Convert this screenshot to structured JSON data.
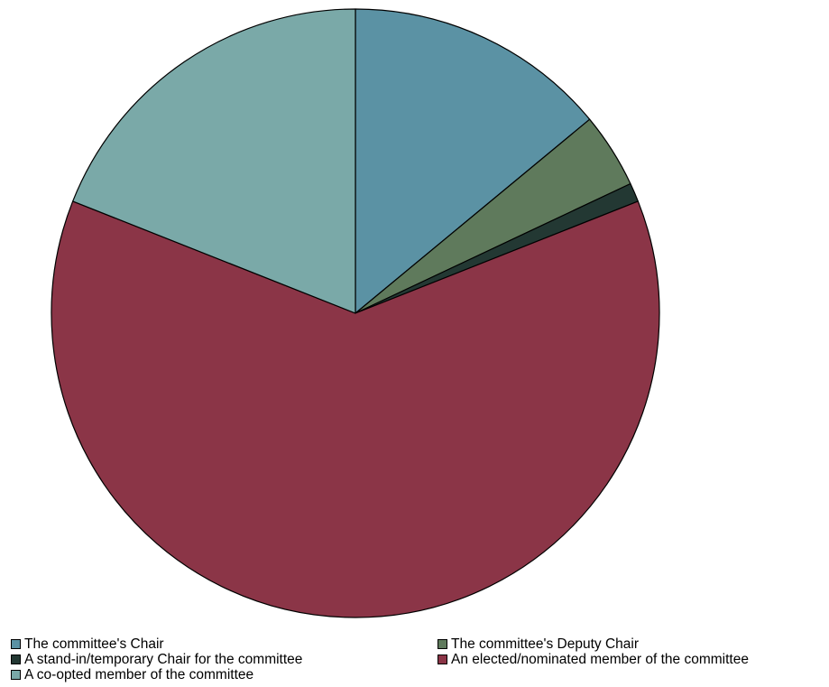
{
  "chart_data": {
    "type": "pie",
    "title": "",
    "start_angle_deg": 0,
    "direction": "clockwise",
    "slices": [
      {
        "label": "The committee's Chair",
        "value": 14.0,
        "color": "#5b92a4"
      },
      {
        "label": "The committee's Deputy Chair",
        "value": 4.0,
        "color": "#5f7a5c"
      },
      {
        "label": "A stand-in/temporary Chair for the committee",
        "value": 1.0,
        "color": "#233833"
      },
      {
        "label": "An elected/nominated member of the committee",
        "value": 62.0,
        "color": "#8b3547"
      },
      {
        "label": "A co-opted member of the committee",
        "value": 19.0,
        "color": "#7aa9a8"
      }
    ],
    "legend_placement": "bottom"
  }
}
